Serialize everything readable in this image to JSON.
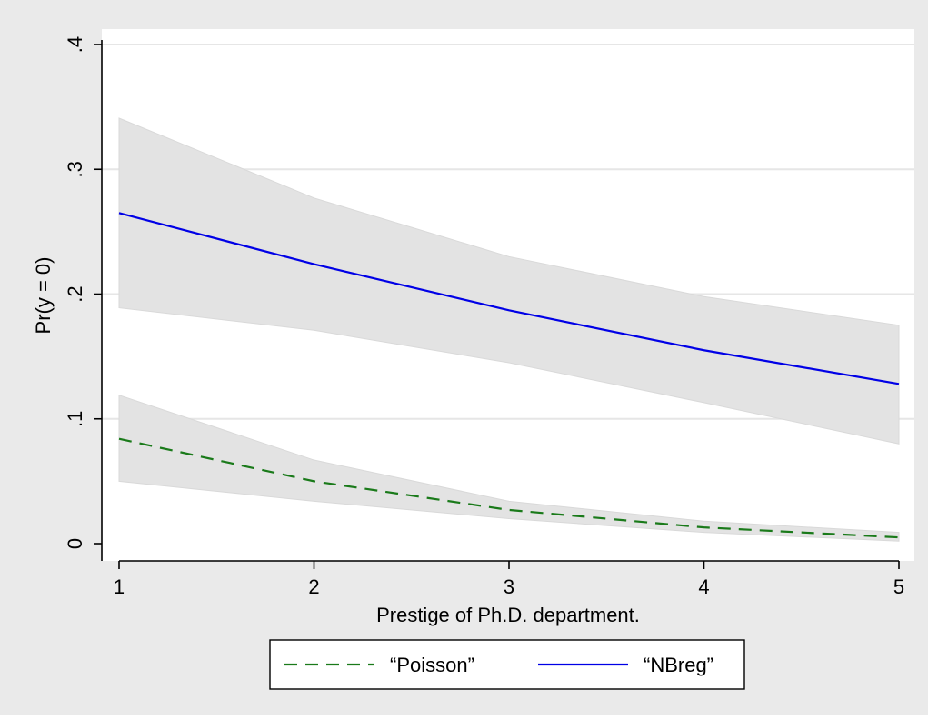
{
  "chart_data": {
    "type": "line",
    "title": "",
    "xlabel": "Prestige of Ph.D. department.",
    "ylabel": "Pr(y = 0)",
    "xlim": [
      1,
      5
    ],
    "ylim": [
      0,
      0.4
    ],
    "x_ticks": [
      1,
      2,
      3,
      4,
      5
    ],
    "x_tick_labels": [
      "1",
      "2",
      "3",
      "4",
      "5"
    ],
    "y_ticks": [
      0,
      0.1,
      0.2,
      0.3,
      0.4
    ],
    "y_tick_labels": [
      "0",
      ".1",
      ".2",
      ".3",
      ".4"
    ],
    "grid": true,
    "legend_position": "bottom",
    "series": [
      {
        "name": "“Poisson”",
        "style": "dashed",
        "color": "#1a7a1a",
        "x": [
          1,
          2,
          3,
          4,
          5
        ],
        "y": [
          0.084,
          0.05,
          0.027,
          0.013,
          0.005
        ],
        "ci_lower": [
          0.05,
          0.034,
          0.02,
          0.009,
          0.002
        ],
        "ci_upper": [
          0.119,
          0.067,
          0.034,
          0.018,
          0.009
        ]
      },
      {
        "name": "“NBreg”",
        "style": "solid",
        "color": "#0000e6",
        "x": [
          1,
          2,
          3,
          4,
          5
        ],
        "y": [
          0.265,
          0.224,
          0.187,
          0.155,
          0.128
        ],
        "ci_lower": [
          0.189,
          0.171,
          0.145,
          0.113,
          0.08
        ],
        "ci_upper": [
          0.341,
          0.277,
          0.23,
          0.198,
          0.175
        ]
      }
    ],
    "colors": {
      "background": "#eaeaea",
      "plot_background": "#ffffff",
      "ci_band": "#e3e3e3",
      "grid": "#e6e6e6"
    }
  }
}
